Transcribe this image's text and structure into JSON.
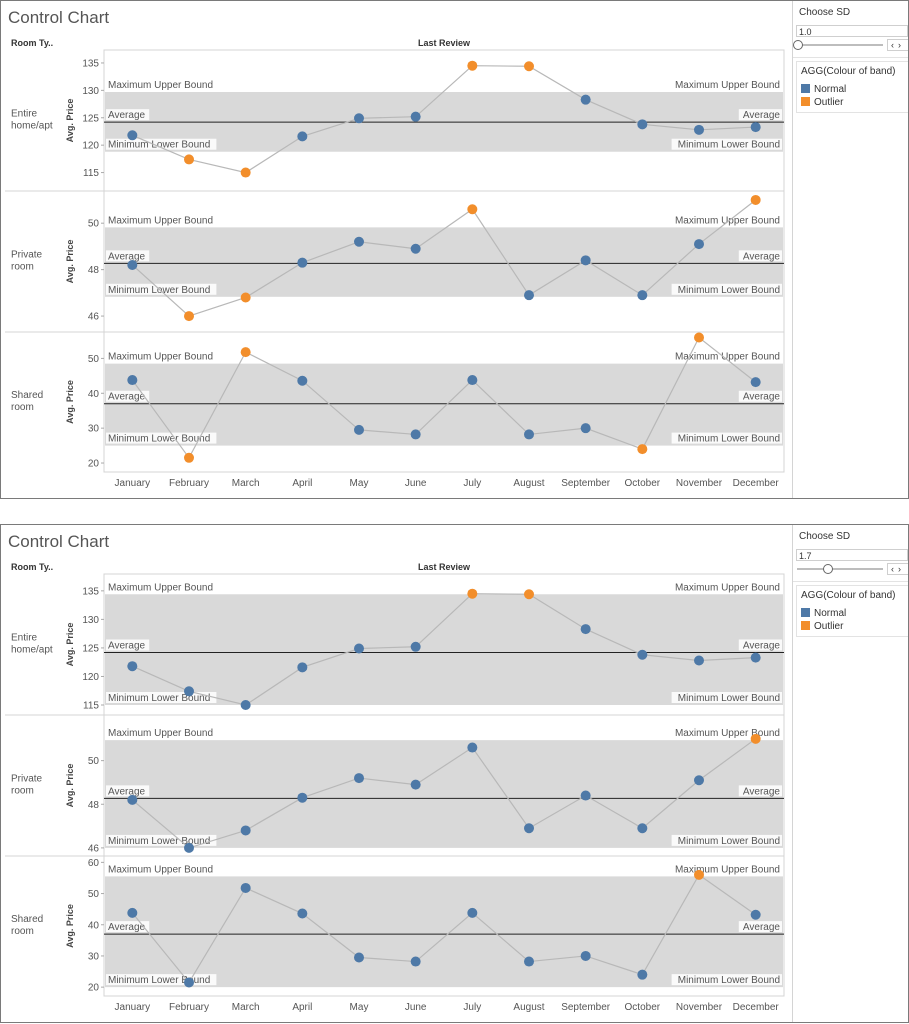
{
  "colors": {
    "normal": "#4e79a7",
    "outlier": "#f28e2b",
    "band": "#d9d9d9",
    "line": "#b8b8b8"
  },
  "header": {
    "row_dim": "Room Ty..",
    "col_dim": "Last Review"
  },
  "months": [
    "January",
    "February",
    "March",
    "April",
    "May",
    "June",
    "July",
    "August",
    "September",
    "October",
    "November",
    "December"
  ],
  "labels": {
    "max_upper": "Maximum Upper Bound",
    "average": "Average",
    "min_lower": "Minimum Lower Bound",
    "axis_title": "Avg. Price"
  },
  "dashboards": [
    {
      "title": "Control Chart",
      "choose_sd": {
        "label": "Choose SD",
        "value": "1.0",
        "slider_fraction": 0.0
      },
      "legend": {
        "title": "AGG(Colour of band)",
        "items": [
          "Normal",
          "Outlier"
        ]
      }
    },
    {
      "title": "Control Chart",
      "choose_sd": {
        "label": "Choose SD",
        "value": "1.7",
        "slider_fraction": 0.35
      },
      "legend": {
        "title": "AGG(Colour of band)",
        "items": [
          "Normal",
          "Outlier"
        ]
      }
    }
  ],
  "chart_data": [
    {
      "type": "line",
      "title": "Control Chart",
      "xlabel": "Last Review",
      "ylabel": "Avg. Price",
      "sd": 1.0,
      "categories": [
        "January",
        "February",
        "March",
        "April",
        "May",
        "June",
        "July",
        "August",
        "September",
        "October",
        "November",
        "December"
      ],
      "panels": [
        {
          "room_type": "Entire home/apt",
          "ylim": [
            112,
            137
          ],
          "ticks": [
            115,
            120,
            125,
            130,
            135
          ],
          "average": 124.2,
          "band": [
            118.8,
            129.7
          ],
          "values": [
            121.8,
            117.4,
            115.0,
            121.6,
            124.9,
            125.2,
            134.5,
            134.4,
            128.3,
            123.8,
            122.8,
            123.3
          ],
          "outlier": [
            false,
            true,
            true,
            false,
            false,
            false,
            true,
            true,
            false,
            false,
            false,
            false
          ]
        },
        {
          "room_type": "Private room",
          "ylim": [
            45.4,
            51.3
          ],
          "ticks": [
            46,
            48,
            50
          ],
          "average": 48.27,
          "band": [
            46.83,
            49.82
          ],
          "values": [
            48.2,
            46.0,
            46.8,
            48.3,
            49.2,
            48.9,
            50.6,
            46.9,
            48.4,
            46.9,
            49.1,
            51.0
          ],
          "outlier": [
            false,
            true,
            true,
            false,
            false,
            false,
            true,
            false,
            false,
            false,
            false,
            true
          ]
        },
        {
          "room_type": "Shared room",
          "ylim": [
            18,
            57
          ],
          "ticks": [
            20,
            30,
            40,
            50
          ],
          "average": 37.0,
          "band": [
            25.0,
            48.5
          ],
          "values": [
            43.8,
            21.5,
            51.8,
            43.6,
            29.5,
            28.2,
            43.8,
            28.2,
            30.0,
            24.0,
            56.0,
            43.2
          ],
          "outlier": [
            false,
            true,
            true,
            false,
            false,
            false,
            false,
            false,
            false,
            true,
            true,
            false
          ]
        }
      ]
    },
    {
      "type": "line",
      "title": "Control Chart",
      "xlabel": "Last Review",
      "ylabel": "Avg. Price",
      "sd": 1.7,
      "categories": [
        "January",
        "February",
        "March",
        "April",
        "May",
        "June",
        "July",
        "August",
        "September",
        "October",
        "November",
        "December"
      ],
      "panels": [
        {
          "room_type": "Entire home/apt",
          "ylim": [
            113.6,
            137.6
          ],
          "ticks": [
            115,
            120,
            125,
            130,
            135
          ],
          "average": 124.2,
          "band": [
            115.0,
            134.4
          ],
          "values": [
            121.8,
            117.4,
            115.0,
            121.6,
            124.9,
            125.2,
            134.5,
            134.4,
            128.3,
            123.8,
            122.8,
            123.3
          ],
          "outlier": [
            false,
            false,
            false,
            false,
            false,
            false,
            true,
            true,
            false,
            false,
            false,
            false
          ]
        },
        {
          "room_type": "Private room",
          "ylim": [
            45.72,
            52.0
          ],
          "ticks": [
            46,
            48,
            50
          ],
          "average": 48.27,
          "band": [
            46.0,
            50.94
          ],
          "values": [
            48.2,
            46.0,
            46.8,
            48.3,
            49.2,
            48.9,
            50.6,
            46.9,
            48.4,
            46.9,
            49.1,
            51.0
          ],
          "outlier": [
            false,
            false,
            false,
            false,
            false,
            false,
            false,
            false,
            false,
            false,
            false,
            true
          ]
        },
        {
          "room_type": "Shared room",
          "ylim": [
            17.8,
            61.4
          ],
          "ticks": [
            20,
            30,
            40,
            50,
            60
          ],
          "average": 37.0,
          "band": [
            20.0,
            55.5
          ],
          "values": [
            43.8,
            21.5,
            51.8,
            43.6,
            29.5,
            28.2,
            43.8,
            28.2,
            30.0,
            24.0,
            56.0,
            43.2
          ],
          "outlier": [
            false,
            false,
            false,
            false,
            false,
            false,
            false,
            false,
            false,
            false,
            true,
            false
          ]
        }
      ]
    }
  ]
}
